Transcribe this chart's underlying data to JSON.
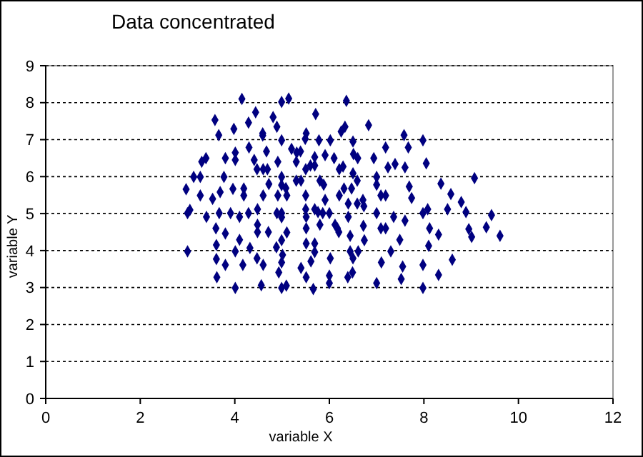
{
  "chart_data": {
    "type": "scatter",
    "title": "Data concentrated",
    "xlabel": "variable X",
    "ylabel": "variable Y",
    "xlim": [
      0,
      12
    ],
    "xticks": [
      0,
      2,
      4,
      6,
      8,
      10,
      12
    ],
    "ylim": [
      0,
      9
    ],
    "yticks": [
      0,
      1,
      2,
      3,
      4,
      5,
      6,
      7,
      8,
      9
    ],
    "grid": "y",
    "marker": "diamond",
    "series": [
      {
        "color": "#000080",
        "x": [
          2.97,
          3.0,
          3.05,
          3.0,
          3.13,
          3.27,
          3.27,
          3.3,
          3.39,
          3.4,
          3.53,
          3.58,
          3.6,
          3.62,
          3.61,
          3.61,
          3.66,
          3.67,
          3.69,
          3.77,
          3.8,
          3.8,
          3.8,
          3.91,
          3.96,
          3.98,
          4.01,
          4.01,
          4.01,
          4.01,
          4.1,
          4.1,
          4.15,
          4.17,
          4.19,
          4.19,
          4.29,
          4.29,
          4.3,
          4.32,
          4.41,
          4.44,
          4.47,
          4.48,
          4.48,
          4.48,
          4.47,
          4.56,
          4.59,
          4.59,
          4.6,
          4.6,
          4.6,
          4.67,
          4.69,
          4.72,
          4.71,
          4.81,
          4.89,
          4.91,
          4.91,
          4.89,
          4.88,
          4.93,
          4.99,
          4.99,
          4.99,
          4.99,
          4.99,
          4.99,
          4.99,
          5.01,
          4.99,
          4.99,
          5.09,
          5.08,
          5.1,
          5.1,
          5.14,
          5.2,
          5.3,
          5.3,
          5.31,
          5.39,
          5.4,
          5.4,
          5.51,
          5.49,
          5.5,
          5.5,
          5.5,
          5.51,
          5.51,
          5.51,
          5.51,
          5.6,
          5.61,
          5.66,
          5.69,
          5.69,
          5.71,
          5.69,
          5.69,
          5.69,
          5.76,
          5.78,
          5.8,
          5.88,
          5.8,
          5.86,
          5.91,
          5.91,
          6.0,
          6.0,
          6.02,
          6.0,
          6.02,
          6.1,
          6.12,
          6.17,
          6.2,
          6.21,
          6.21,
          6.29,
          6.25,
          6.33,
          6.36,
          6.31,
          6.4,
          6.4,
          6.39,
          6.5,
          6.47,
          6.44,
          6.44,
          6.5,
          6.49,
          6.51,
          6.6,
          6.5,
          6.59,
          6.59,
          6.71,
          6.73,
          6.61,
          6.72,
          6.74,
          6.83,
          6.94,
          7.0,
          7.0,
          7.0,
          7.0,
          7.09,
          7.19,
          7.09,
          7.19,
          7.1,
          7.19,
          7.24,
          7.36,
          7.3,
          7.39,
          7.49,
          7.52,
          7.55,
          7.58,
          7.6,
          7.6,
          7.67,
          7.69,
          7.74,
          7.98,
          7.98,
          8.08,
          7.98,
          7.98,
          8.05,
          8.12,
          8.1,
          8.31,
          8.31,
          8.36,
          8.5,
          8.57,
          8.6,
          8.79,
          8.89,
          8.95,
          9.01,
          9.07,
          9.32,
          9.43,
          9.61
        ],
        "values": [
          5.66,
          5.01,
          5.1,
          3.98,
          5.99,
          5.99,
          5.49,
          6.4,
          6.5,
          4.91,
          5.4,
          7.53,
          4.6,
          3.28,
          4.15,
          3.77,
          7.12,
          5.01,
          5.58,
          5.99,
          6.5,
          4.46,
          3.61,
          5.01,
          5.67,
          7.29,
          6.65,
          6.45,
          3.98,
          2.99,
          4.91,
          4.29,
          8.1,
          3.61,
          5.68,
          5.49,
          7.46,
          5.01,
          6.79,
          4.07,
          6.45,
          7.74,
          6.2,
          5.12,
          4.7,
          4.5,
          3.79,
          3.06,
          7.17,
          7.11,
          6.2,
          5.49,
          3.61,
          6.68,
          6.2,
          5.8,
          4.5,
          7.61,
          7.35,
          6.4,
          5.49,
          5.01,
          4.09,
          3.41,
          8.02,
          6.98,
          5.99,
          5.77,
          5.01,
          4.9,
          4.28,
          3.88,
          3.68,
          2.99,
          3.05,
          5.69,
          5.49,
          4.49,
          8.11,
          6.75,
          6.4,
          5.89,
          6.65,
          6.68,
          5.89,
          3.53,
          7.17,
          7.02,
          6.2,
          5.49,
          5.12,
          4.91,
          4.6,
          4.19,
          3.28,
          6.3,
          3.71,
          2.96,
          6.53,
          6.3,
          7.69,
          5.12,
          4.19,
          3.96,
          5.04,
          6.98,
          5.89,
          5.78,
          4.7,
          5.01,
          6.58,
          5.37,
          3.32,
          3.12,
          6.98,
          5.01,
          3.79,
          6.5,
          4.7,
          4.6,
          4.5,
          5.49,
          6.2,
          6.27,
          7.22,
          7.35,
          8.05,
          5.68,
          5.27,
          4.91,
          3.28,
          6.95,
          5.68,
          4.4,
          3.98,
          3.79,
          3.41,
          6.61,
          6.5,
          6.09,
          5.89,
          5.27,
          5.37,
          5.2,
          3.98,
          4.67,
          4.28,
          7.39,
          6.5,
          5.99,
          5.78,
          5.01,
          3.12,
          5.49,
          5.49,
          4.6,
          4.6,
          3.68,
          6.79,
          6.25,
          4.91,
          3.98,
          6.34,
          4.29,
          3.23,
          3.57,
          7.12,
          6.25,
          4.81,
          6.79,
          5.73,
          5.42,
          6.98,
          5.01,
          5.12,
          3.61,
          2.99,
          6.36,
          4.6,
          4.13,
          4.43,
          3.34,
          5.81,
          5.12,
          5.53,
          3.75,
          5.31,
          5.04,
          4.58,
          4.37,
          5.96,
          4.63,
          4.96,
          4.4
        ]
      }
    ]
  }
}
